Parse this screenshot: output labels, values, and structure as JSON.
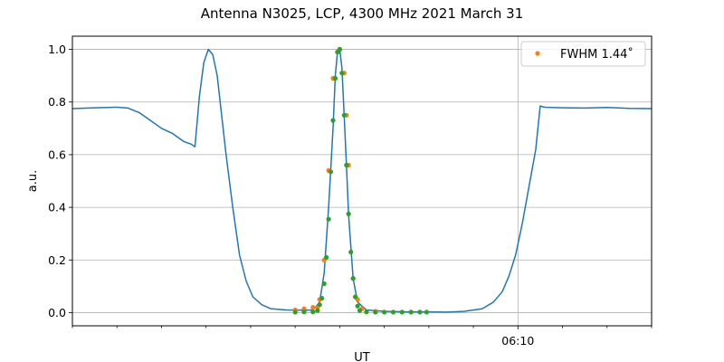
{
  "chart_data": {
    "type": "line",
    "title": "Antenna N3025, LCP, 4300 MHz 2021 March 31",
    "xlabel": "UT",
    "ylabel": "a.u.",
    "xlim": [
      "06:00:00",
      "06:13:00"
    ],
    "ylim": [
      -0.05,
      1.05
    ],
    "yticks": [
      0.0,
      0.2,
      0.4,
      0.6,
      0.8,
      1.0
    ],
    "ytick_labels": [
      "0.0",
      "0.2",
      "0.4",
      "0.6",
      "0.8",
      "1.0"
    ],
    "xticks": [
      "06:10:00"
    ],
    "xtick_labels": [
      "06:10"
    ],
    "x_minor_ticks": [
      "06:00:00",
      "06:01:00",
      "06:02:00",
      "06:03:00",
      "06:04:00",
      "06:05:00",
      "06:06:00",
      "06:07:00",
      "06:08:00",
      "06:09:00",
      "06:11:00",
      "06:12:00",
      "06:13:00"
    ],
    "grid": true,
    "legend": {
      "position": "top-right",
      "entries": [
        "FWHM 1.44$^\\circ$"
      ],
      "label_display": "FWHM 1.44˚"
    },
    "colors": {
      "line": "#1f77b4",
      "orange": "#ff7f0e",
      "green": "#2ca02c",
      "grid": "#b0b0b0"
    },
    "series": [
      {
        "kind": "line",
        "color": "#1f77b4",
        "x": [
          "06:00:00",
          "06:00:30",
          "06:01:00",
          "06:01:15",
          "06:01:30",
          "06:01:45",
          "06:02:00",
          "06:02:15",
          "06:02:30",
          "06:02:40",
          "06:02:45",
          "06:02:51",
          "06:02:57",
          "06:03:03",
          "06:03:09",
          "06:03:15",
          "06:03:21",
          "06:03:27",
          "06:03:36",
          "06:03:45",
          "06:03:54",
          "06:04:03",
          "06:04:15",
          "06:04:27",
          "06:04:48",
          "06:05:12",
          "06:05:24",
          "06:05:33",
          "06:05:39",
          "06:05:45",
          "06:05:51",
          "06:05:54",
          "06:05:57",
          "06:06:00",
          "06:06:03",
          "06:06:06",
          "06:06:09",
          "06:06:12",
          "06:06:18",
          "06:06:24",
          "06:06:36",
          "06:07:00",
          "06:07:30",
          "06:08:00",
          "06:08:24",
          "06:08:48",
          "06:09:12",
          "06:09:27",
          "06:09:39",
          "06:09:48",
          "06:09:57",
          "06:10:06",
          "06:10:15",
          "06:10:24",
          "06:10:30",
          "06:10:36",
          "06:11:00",
          "06:11:30",
          "06:12:00",
          "06:12:30",
          "06:13:00"
        ],
        "y": [
          0.775,
          0.778,
          0.78,
          0.777,
          0.76,
          0.73,
          0.7,
          0.68,
          0.65,
          0.64,
          0.63,
          0.82,
          0.95,
          1.0,
          0.98,
          0.9,
          0.75,
          0.6,
          0.4,
          0.22,
          0.12,
          0.06,
          0.03,
          0.015,
          0.01,
          0.009,
          0.01,
          0.04,
          0.15,
          0.4,
          0.7,
          0.9,
          0.99,
          1.0,
          0.93,
          0.75,
          0.56,
          0.37,
          0.13,
          0.04,
          0.01,
          0.005,
          0.003,
          0.003,
          0.002,
          0.005,
          0.015,
          0.04,
          0.08,
          0.14,
          0.22,
          0.34,
          0.48,
          0.62,
          0.785,
          0.78,
          0.778,
          0.777,
          0.779,
          0.776,
          0.775
        ]
      },
      {
        "kind": "scatter",
        "name": "FWHM 1.44˚",
        "color": "#ff7f0e",
        "x": [
          "06:05:00",
          "06:05:12",
          "06:05:24",
          "06:05:30",
          "06:05:33",
          "06:05:39",
          "06:05:45",
          "06:05:51",
          "06:05:57",
          "06:06:00",
          "06:06:06",
          "06:06:09",
          "06:06:12",
          "06:06:18",
          "06:06:24",
          "06:06:30",
          "06:06:48"
        ],
        "y": [
          0.01,
          0.015,
          0.02,
          0.02,
          0.05,
          0.2,
          0.54,
          0.89,
          0.99,
          1.0,
          0.91,
          0.75,
          0.56,
          0.13,
          0.05,
          0.015,
          0.005
        ]
      },
      {
        "kind": "scatter",
        "color": "#2ca02c",
        "x": [
          "06:05:00",
          "06:05:12",
          "06:05:24",
          "06:05:30",
          "06:05:33",
          "06:05:36",
          "06:05:39",
          "06:05:42",
          "06:05:45",
          "06:05:48",
          "06:05:51",
          "06:05:54",
          "06:05:57",
          "06:06:00",
          "06:06:03",
          "06:06:06",
          "06:06:09",
          "06:06:12",
          "06:06:15",
          "06:06:18",
          "06:06:21",
          "06:06:24",
          "06:06:27",
          "06:06:36",
          "06:06:48",
          "06:07:00",
          "06:07:12",
          "06:07:24",
          "06:07:36",
          "06:07:48",
          "06:07:57"
        ],
        "y": [
          0.002,
          0.003,
          0.003,
          0.008,
          0.03,
          0.055,
          0.11,
          0.21,
          0.355,
          0.535,
          0.73,
          0.89,
          0.99,
          1.0,
          0.91,
          0.75,
          0.56,
          0.375,
          0.23,
          0.13,
          0.06,
          0.025,
          0.008,
          0.003,
          0.002,
          0.002,
          0.002,
          0.002,
          0.002,
          0.002,
          0.002
        ]
      }
    ]
  }
}
